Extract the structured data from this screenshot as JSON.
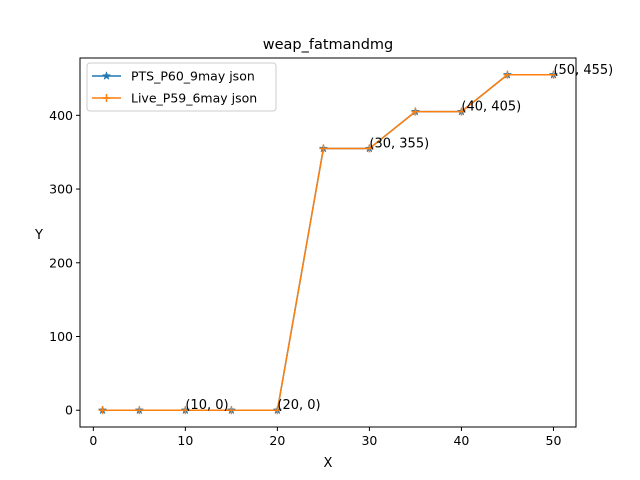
{
  "chart_data": {
    "type": "line",
    "title": "weap_fatmandmg",
    "xlabel": "X",
    "ylabel": "Y",
    "xlim": [
      -1.45,
      52.45
    ],
    "ylim": [
      -22.75,
      477.75
    ],
    "xticks": [
      0,
      10,
      20,
      30,
      40,
      50
    ],
    "yticks": [
      0,
      100,
      200,
      300,
      400
    ],
    "grid": false,
    "legend_position": "upper left",
    "x": [
      1,
      5,
      10,
      15,
      20,
      25,
      30,
      35,
      40,
      45,
      50
    ],
    "series": [
      {
        "name": "PTS_P60_9may json",
        "color": "#1f77b4",
        "marker": "star",
        "values": [
          0,
          0,
          0,
          0,
          0,
          355,
          355,
          405,
          405,
          455,
          455
        ]
      },
      {
        "name": "Live_P59_6may json",
        "color": "#ff7f0e",
        "marker": "plus",
        "values": [
          0,
          0,
          0,
          0,
          0,
          355,
          355,
          405,
          405,
          455,
          455
        ]
      }
    ],
    "annotations": [
      {
        "x": 10,
        "y": 0,
        "text": "(10, 0)"
      },
      {
        "x": 20,
        "y": 0,
        "text": "(20, 0)"
      },
      {
        "x": 30,
        "y": 355,
        "text": "(30, 355)"
      },
      {
        "x": 40,
        "y": 405,
        "text": "(40, 405)"
      },
      {
        "x": 50,
        "y": 455,
        "text": "(50, 455)"
      }
    ]
  }
}
